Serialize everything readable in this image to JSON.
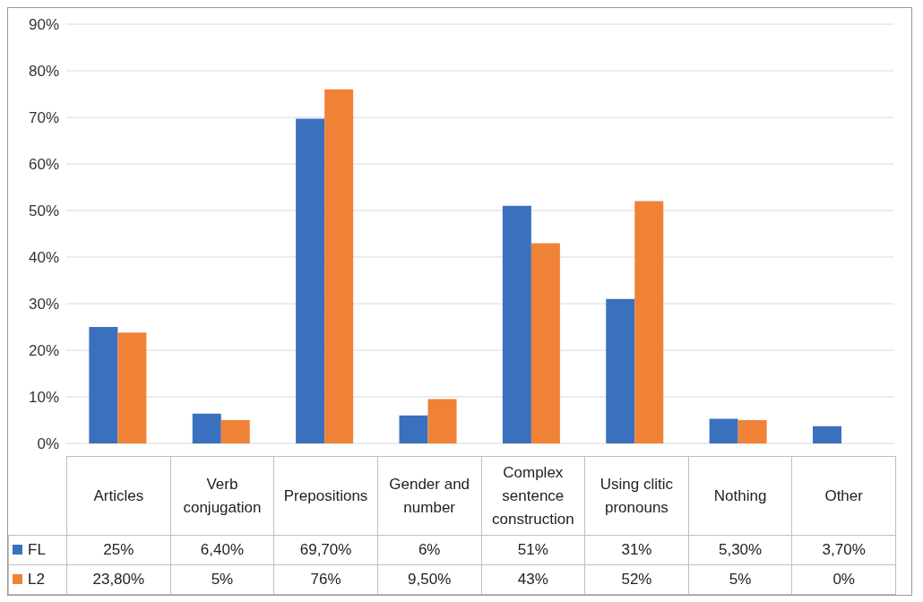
{
  "chart_data": {
    "type": "bar",
    "categories": [
      "Articles",
      "Verb conjugation",
      "Prepositions",
      "Gender and number",
      "Complex sentence construction",
      "Using clitic pronouns",
      "Nothing",
      "Other"
    ],
    "series": [
      {
        "name": "FL",
        "color": "#3a70bd",
        "values": [
          25,
          6.4,
          69.7,
          6,
          51,
          31,
          5.3,
          3.7
        ],
        "value_labels": [
          "25%",
          "6,40%",
          "69,70%",
          "6%",
          "51%",
          "31%",
          "5,30%",
          "3,70%"
        ]
      },
      {
        "name": "L2",
        "color": "#ef8237",
        "values": [
          23.8,
          5,
          76,
          9.5,
          43,
          52,
          5,
          0
        ],
        "value_labels": [
          "23,80%",
          "5%",
          "76%",
          "9,50%",
          "43%",
          "52%",
          "5%",
          "0%"
        ]
      }
    ],
    "ylim": [
      0,
      90
    ],
    "yticks": [
      {
        "value": 0,
        "label": "0%"
      },
      {
        "value": 10,
        "label": "10%"
      },
      {
        "value": 20,
        "label": "20%"
      },
      {
        "value": 30,
        "label": "30%"
      },
      {
        "value": 40,
        "label": "40%"
      },
      {
        "value": 50,
        "label": "50%"
      },
      {
        "value": 60,
        "label": "60%"
      },
      {
        "value": 70,
        "label": "70%"
      },
      {
        "value": 80,
        "label": "80%"
      },
      {
        "value": 90,
        "label": "90%"
      }
    ],
    "grid": "y",
    "legend": "bottom"
  }
}
